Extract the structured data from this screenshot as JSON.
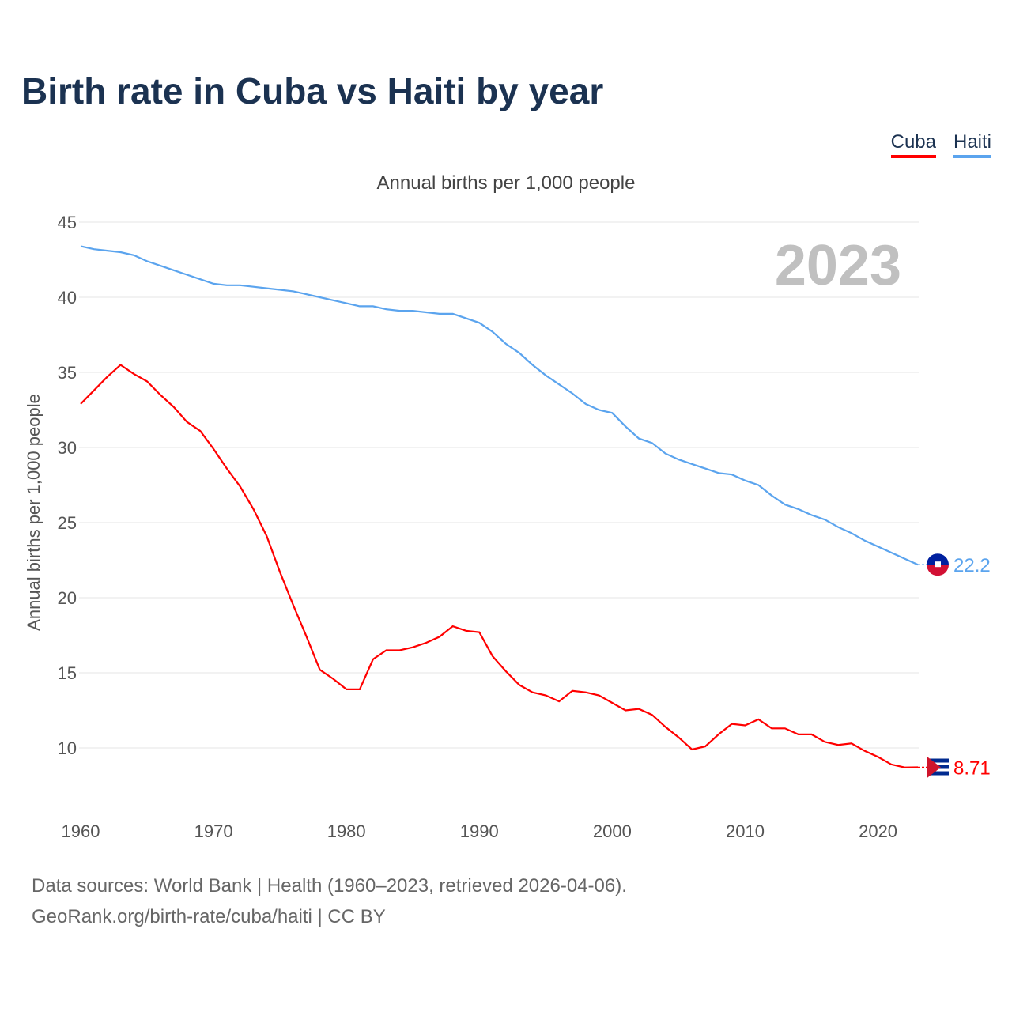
{
  "title": "Birth rate in Cuba vs Haiti by year",
  "subtitle": "Annual births per 1,000 people",
  "source_line1": "Data sources: World Bank | Health (1960–2023, retrieved 2026-04-06).",
  "source_line2": "GeoRank.org/birth-rate/cuba/haiti | CC BY",
  "chart_data": {
    "type": "line",
    "title": "Birth rate in Cuba vs Haiti by year",
    "ylabel": "Annual births per 1,000 people",
    "xlabel": "",
    "year_label": "2023",
    "ylim": [
      7,
      45
    ],
    "xlim": [
      1960,
      2023
    ],
    "yticks": [
      10,
      15,
      20,
      25,
      30,
      35,
      40,
      45
    ],
    "xticks": [
      1960,
      1970,
      1980,
      1990,
      2000,
      2010,
      2020
    ],
    "grid": true,
    "legend_position": "top-right",
    "x": [
      1960,
      1961,
      1962,
      1963,
      1964,
      1965,
      1966,
      1967,
      1968,
      1969,
      1970,
      1971,
      1972,
      1973,
      1974,
      1975,
      1976,
      1977,
      1978,
      1979,
      1980,
      1981,
      1982,
      1983,
      1984,
      1985,
      1986,
      1987,
      1988,
      1989,
      1990,
      1991,
      1992,
      1993,
      1994,
      1995,
      1996,
      1997,
      1998,
      1999,
      2000,
      2001,
      2002,
      2003,
      2004,
      2005,
      2006,
      2007,
      2008,
      2009,
      2010,
      2011,
      2012,
      2013,
      2014,
      2015,
      2016,
      2017,
      2018,
      2019,
      2020,
      2021,
      2022,
      2023
    ],
    "series": [
      {
        "name": "Cuba",
        "color": "#ff0000",
        "end_label": "8.71",
        "values": [
          32.9,
          33.8,
          34.7,
          35.5,
          34.9,
          34.4,
          33.5,
          32.7,
          31.7,
          31.1,
          29.9,
          28.6,
          27.4,
          25.9,
          24.1,
          21.7,
          19.5,
          17.4,
          15.2,
          14.6,
          13.9,
          13.9,
          15.9,
          16.5,
          16.5,
          16.7,
          17.0,
          17.4,
          18.1,
          17.8,
          17.7,
          16.1,
          15.1,
          14.2,
          13.7,
          13.5,
          13.1,
          13.8,
          13.7,
          13.5,
          13.0,
          12.5,
          12.6,
          12.2,
          11.4,
          10.7,
          9.9,
          10.1,
          10.9,
          11.6,
          11.5,
          11.9,
          11.3,
          11.3,
          10.9,
          10.9,
          10.4,
          10.2,
          10.3,
          9.8,
          9.4,
          8.9,
          8.7,
          8.71
        ]
      },
      {
        "name": "Haiti",
        "color": "#5ba4ee",
        "end_label": "22.2",
        "values": [
          43.4,
          43.2,
          43.1,
          43.0,
          42.8,
          42.4,
          42.1,
          41.8,
          41.5,
          41.2,
          40.9,
          40.8,
          40.8,
          40.7,
          40.6,
          40.5,
          40.4,
          40.2,
          40.0,
          39.8,
          39.6,
          39.4,
          39.4,
          39.2,
          39.1,
          39.1,
          39.0,
          38.9,
          38.9,
          38.6,
          38.3,
          37.7,
          36.9,
          36.3,
          35.5,
          34.8,
          34.2,
          33.6,
          32.9,
          32.5,
          32.3,
          31.4,
          30.6,
          30.3,
          29.6,
          29.2,
          28.9,
          28.6,
          28.3,
          28.2,
          27.8,
          27.5,
          26.8,
          26.2,
          25.9,
          25.5,
          25.2,
          24.7,
          24.3,
          23.8,
          23.4,
          23.0,
          22.6,
          22.2
        ]
      }
    ]
  }
}
